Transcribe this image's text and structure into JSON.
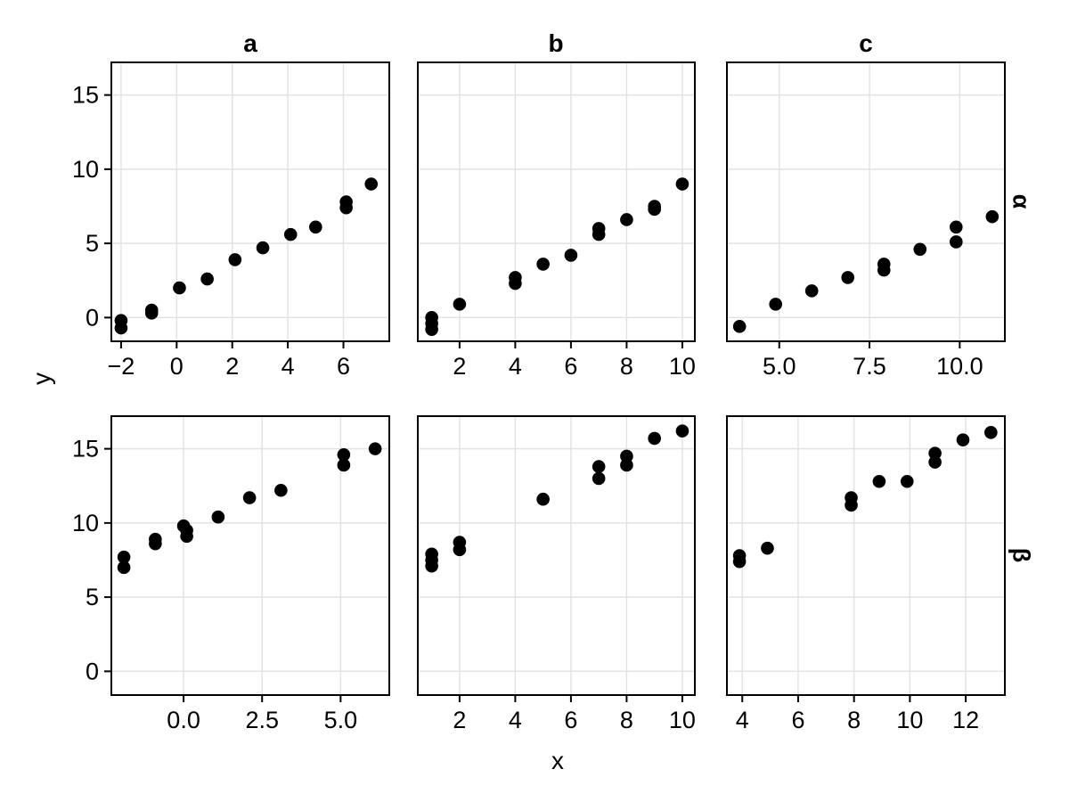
{
  "figure": {
    "xlabel": "x",
    "ylabel": "y",
    "col_titles": [
      "a",
      "b",
      "c"
    ],
    "row_titles": [
      "α",
      "β"
    ],
    "colors": {
      "background": "#ffffff",
      "point": "#000000",
      "grid": "#e2e2e2",
      "panel_border": "#000000",
      "tick": "#000000",
      "text": "#000000"
    }
  },
  "chart_data": {
    "type": "scatter",
    "title": "",
    "xlabel": "x",
    "ylabel": "y",
    "facet_rows": [
      "α",
      "β"
    ],
    "facet_cols": [
      "a",
      "b",
      "c"
    ],
    "grid": "major-only",
    "legend": "none",
    "shared_y": {
      "ticks": [
        0,
        5,
        10,
        15
      ],
      "tick_labels": [
        "0",
        "5",
        "10",
        "15"
      ],
      "range": [
        -1.6,
        17.2
      ]
    },
    "panels": [
      {
        "row": "α",
        "col": "a",
        "x_range": [
          -2.35,
          7.65
        ],
        "x_ticks": [
          -2,
          0,
          2,
          4,
          6
        ],
        "x_tick_labels": [
          "−2",
          "0",
          "2",
          "4",
          "6"
        ],
        "points": [
          [
            -2.0,
            -0.2
          ],
          [
            -2.0,
            -0.7
          ],
          [
            -0.9,
            0.5
          ],
          [
            -0.9,
            0.3
          ],
          [
            0.1,
            2.0
          ],
          [
            1.1,
            2.6
          ],
          [
            2.1,
            3.9
          ],
          [
            3.1,
            4.7
          ],
          [
            4.1,
            5.6
          ],
          [
            5.0,
            6.1
          ],
          [
            6.1,
            7.8
          ],
          [
            6.1,
            7.4
          ],
          [
            7.0,
            9.0
          ]
        ]
      },
      {
        "row": "α",
        "col": "b",
        "x_range": [
          0.5,
          10.45
        ],
        "x_ticks": [
          2,
          4,
          6,
          8,
          10
        ],
        "x_tick_labels": [
          "2",
          "4",
          "6",
          "8",
          "10"
        ],
        "points": [
          [
            1,
            0.0
          ],
          [
            1,
            -0.4
          ],
          [
            1,
            -0.8
          ],
          [
            2,
            0.9
          ],
          [
            4,
            2.7
          ],
          [
            4,
            2.3
          ],
          [
            5,
            3.6
          ],
          [
            6,
            4.2
          ],
          [
            7,
            6.0
          ],
          [
            7,
            5.6
          ],
          [
            8,
            6.6
          ],
          [
            9,
            7.5
          ],
          [
            9,
            7.3
          ],
          [
            10,
            9.0
          ]
        ]
      },
      {
        "row": "α",
        "col": "c",
        "x_range": [
          3.55,
          11.25
        ],
        "x_ticks": [
          5.0,
          7.5,
          10.0
        ],
        "x_tick_labels": [
          "5.0",
          "7.5",
          "10.0"
        ],
        "points": [
          [
            3.9,
            -0.6
          ],
          [
            4.9,
            0.9
          ],
          [
            5.9,
            1.8
          ],
          [
            6.9,
            2.7
          ],
          [
            7.9,
            3.6
          ],
          [
            7.9,
            3.2
          ],
          [
            8.9,
            4.6
          ],
          [
            9.9,
            6.1
          ],
          [
            9.9,
            5.1
          ],
          [
            10.9,
            6.8
          ]
        ]
      },
      {
        "row": "β",
        "col": "a",
        "x_range": [
          -2.3,
          6.55
        ],
        "x_ticks": [
          0.0,
          2.5,
          5.0
        ],
        "x_tick_labels": [
          "0.0",
          "2.5",
          "5.0"
        ],
        "points": [
          [
            -1.9,
            7.7
          ],
          [
            -1.9,
            7.0
          ],
          [
            -0.9,
            8.9
          ],
          [
            -0.9,
            8.6
          ],
          [
            0.0,
            9.8
          ],
          [
            0.1,
            9.5
          ],
          [
            0.1,
            9.1
          ],
          [
            1.1,
            10.4
          ],
          [
            2.1,
            11.7
          ],
          [
            3.1,
            12.2
          ],
          [
            5.1,
            14.6
          ],
          [
            5.1,
            13.9
          ],
          [
            6.1,
            15.0
          ]
        ]
      },
      {
        "row": "β",
        "col": "b",
        "x_range": [
          0.5,
          10.45
        ],
        "x_ticks": [
          2,
          4,
          6,
          8,
          10
        ],
        "x_tick_labels": [
          "2",
          "4",
          "6",
          "8",
          "10"
        ],
        "points": [
          [
            1,
            7.9
          ],
          [
            1,
            7.5
          ],
          [
            1,
            7.1
          ],
          [
            2,
            8.7
          ],
          [
            2,
            8.2
          ],
          [
            5,
            11.6
          ],
          [
            7,
            13.8
          ],
          [
            7,
            13.0
          ],
          [
            8,
            14.5
          ],
          [
            8,
            13.9
          ],
          [
            9,
            15.7
          ],
          [
            10,
            16.2
          ]
        ]
      },
      {
        "row": "β",
        "col": "c",
        "x_range": [
          3.45,
          13.4
        ],
        "x_ticks": [
          4,
          6,
          8,
          10,
          12
        ],
        "x_tick_labels": [
          "4",
          "6",
          "8",
          "10",
          "12"
        ],
        "points": [
          [
            3.9,
            7.8
          ],
          [
            3.9,
            7.4
          ],
          [
            4.9,
            8.3
          ],
          [
            7.9,
            11.7
          ],
          [
            7.9,
            11.2
          ],
          [
            8.9,
            12.8
          ],
          [
            9.9,
            12.8
          ],
          [
            10.9,
            14.7
          ],
          [
            10.9,
            14.1
          ],
          [
            11.9,
            15.6
          ],
          [
            12.9,
            16.1
          ]
        ]
      }
    ]
  }
}
